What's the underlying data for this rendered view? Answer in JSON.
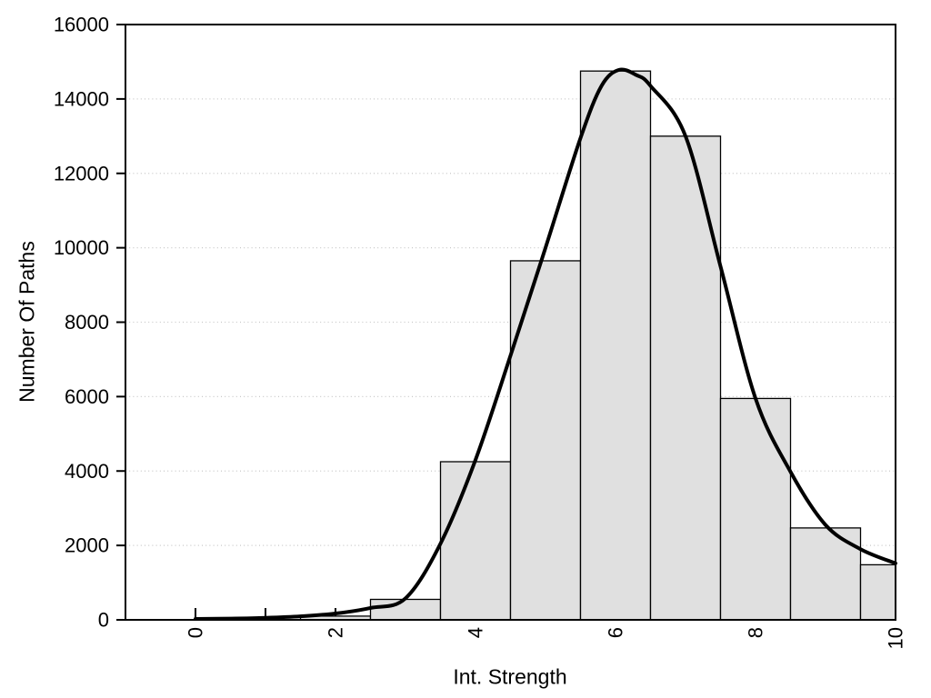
{
  "chart_data": {
    "type": "bar",
    "subtype": "histogram-with-density-curve",
    "title": "",
    "xlabel": "Int. Strength",
    "ylabel": "Number Of Paths",
    "xlim": [
      -1,
      10
    ],
    "ylim": [
      0,
      16000
    ],
    "grid": "horizontal-dotted",
    "legend_position": "none",
    "x_ticks": [
      {
        "pos": 0,
        "label": "0"
      },
      {
        "pos": 1,
        "label": ""
      },
      {
        "pos": 2,
        "label": "2"
      },
      {
        "pos": 3,
        "label": ""
      },
      {
        "pos": 4,
        "label": "4"
      },
      {
        "pos": 5,
        "label": ""
      },
      {
        "pos": 6,
        "label": "6"
      },
      {
        "pos": 7,
        "label": ""
      },
      {
        "pos": 8,
        "label": "8"
      },
      {
        "pos": 9,
        "label": ""
      },
      {
        "pos": 10,
        "label": "10"
      }
    ],
    "y_ticks": [
      {
        "pos": 0,
        "label": "0"
      },
      {
        "pos": 2000,
        "label": "2000"
      },
      {
        "pos": 4000,
        "label": "4000"
      },
      {
        "pos": 6000,
        "label": "6000"
      },
      {
        "pos": 8000,
        "label": "8000"
      },
      {
        "pos": 10000,
        "label": "10000"
      },
      {
        "pos": 12000,
        "label": "12000"
      },
      {
        "pos": 14000,
        "label": "14000"
      },
      {
        "pos": 16000,
        "label": "16000"
      }
    ],
    "y_gridlines": [
      2000,
      4000,
      6000,
      8000,
      10000,
      12000,
      14000
    ],
    "bins": {
      "edges": [
        1.5,
        2.5,
        3.5,
        4.5,
        5.5,
        6.5,
        7.5,
        8.5,
        9.5,
        10
      ],
      "counts": [
        100,
        550,
        4250,
        9650,
        14750,
        13000,
        5950,
        2470,
        1480
      ]
    },
    "density_curve": [
      [
        0,
        25
      ],
      [
        0.5,
        35
      ],
      [
        1,
        55
      ],
      [
        1.5,
        95
      ],
      [
        2,
        170
      ],
      [
        2.5,
        320
      ],
      [
        3,
        580
      ],
      [
        3.5,
        2050
      ],
      [
        4,
        4300
      ],
      [
        4.5,
        7100
      ],
      [
        5,
        10000
      ],
      [
        5.5,
        12950
      ],
      [
        5.8,
        14350
      ],
      [
        6.05,
        14780
      ],
      [
        6.3,
        14640
      ],
      [
        6.5,
        14350
      ],
      [
        7,
        13000
      ],
      [
        7.5,
        9500
      ],
      [
        8,
        5950
      ],
      [
        8.5,
        3980
      ],
      [
        9,
        2550
      ],
      [
        9.5,
        1900
      ],
      [
        10,
        1520
      ]
    ],
    "colors": {
      "background": "#ffffff",
      "bar_fill": "#e0e0e0",
      "bar_stroke": "#000000",
      "curve": "#000000",
      "grid": "#c8c8c8",
      "axis": "#000000",
      "text": "#000000"
    }
  }
}
